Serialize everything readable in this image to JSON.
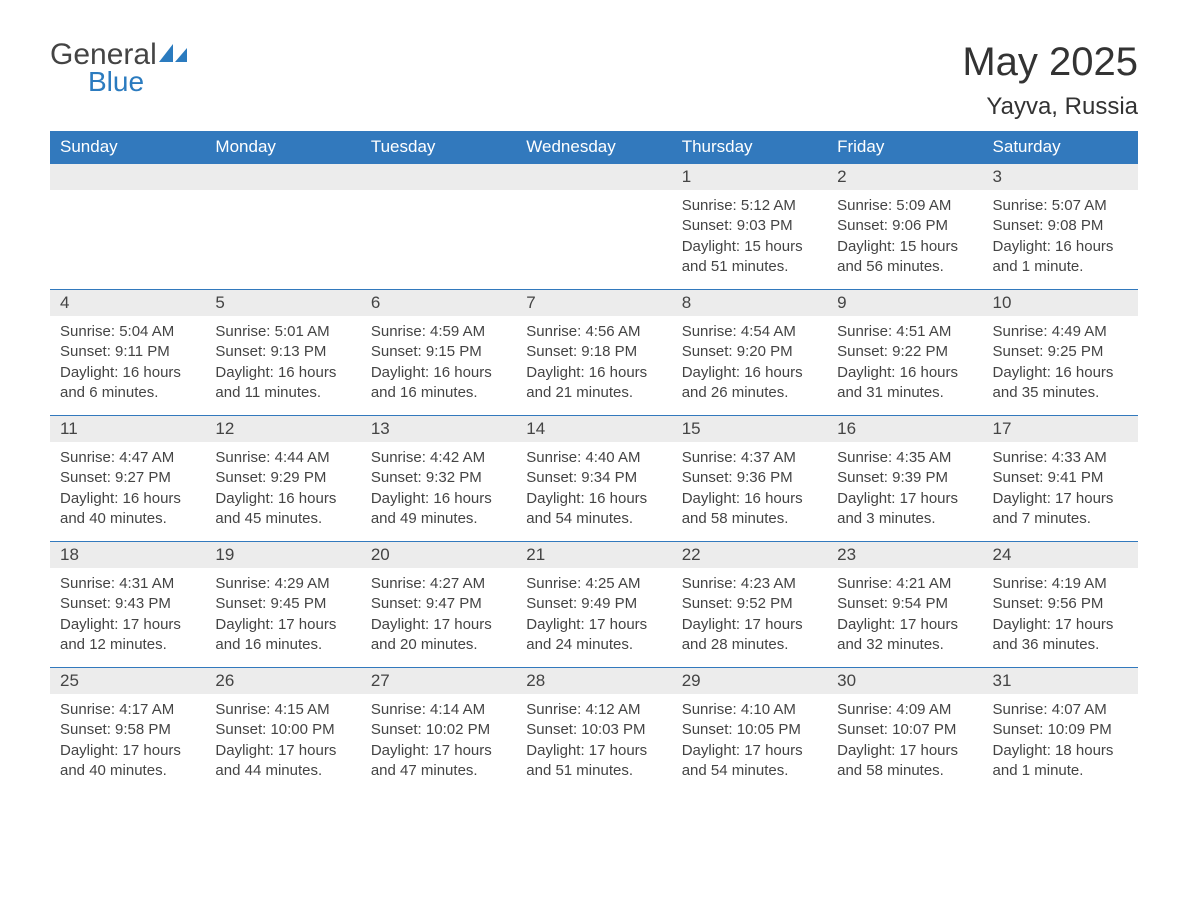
{
  "brand": {
    "general": "General",
    "blue": "Blue"
  },
  "title": "May 2025",
  "location": "Yayva, Russia",
  "day_headers": [
    "Sunday",
    "Monday",
    "Tuesday",
    "Wednesday",
    "Thursday",
    "Friday",
    "Saturday"
  ],
  "colors": {
    "header_bg": "#3279bd",
    "header_text": "#ffffff",
    "daynum_bg": "#ececec",
    "body_text": "#444444",
    "brand_blue": "#2b7bbf"
  },
  "weeks": [
    [
      null,
      null,
      null,
      null,
      {
        "n": "1",
        "sunrise": "Sunrise: 5:12 AM",
        "sunset": "Sunset: 9:03 PM",
        "daylight": "Daylight: 15 hours and 51 minutes."
      },
      {
        "n": "2",
        "sunrise": "Sunrise: 5:09 AM",
        "sunset": "Sunset: 9:06 PM",
        "daylight": "Daylight: 15 hours and 56 minutes."
      },
      {
        "n": "3",
        "sunrise": "Sunrise: 5:07 AM",
        "sunset": "Sunset: 9:08 PM",
        "daylight": "Daylight: 16 hours and 1 minute."
      }
    ],
    [
      {
        "n": "4",
        "sunrise": "Sunrise: 5:04 AM",
        "sunset": "Sunset: 9:11 PM",
        "daylight": "Daylight: 16 hours and 6 minutes."
      },
      {
        "n": "5",
        "sunrise": "Sunrise: 5:01 AM",
        "sunset": "Sunset: 9:13 PM",
        "daylight": "Daylight: 16 hours and 11 minutes."
      },
      {
        "n": "6",
        "sunrise": "Sunrise: 4:59 AM",
        "sunset": "Sunset: 9:15 PM",
        "daylight": "Daylight: 16 hours and 16 minutes."
      },
      {
        "n": "7",
        "sunrise": "Sunrise: 4:56 AM",
        "sunset": "Sunset: 9:18 PM",
        "daylight": "Daylight: 16 hours and 21 minutes."
      },
      {
        "n": "8",
        "sunrise": "Sunrise: 4:54 AM",
        "sunset": "Sunset: 9:20 PM",
        "daylight": "Daylight: 16 hours and 26 minutes."
      },
      {
        "n": "9",
        "sunrise": "Sunrise: 4:51 AM",
        "sunset": "Sunset: 9:22 PM",
        "daylight": "Daylight: 16 hours and 31 minutes."
      },
      {
        "n": "10",
        "sunrise": "Sunrise: 4:49 AM",
        "sunset": "Sunset: 9:25 PM",
        "daylight": "Daylight: 16 hours and 35 minutes."
      }
    ],
    [
      {
        "n": "11",
        "sunrise": "Sunrise: 4:47 AM",
        "sunset": "Sunset: 9:27 PM",
        "daylight": "Daylight: 16 hours and 40 minutes."
      },
      {
        "n": "12",
        "sunrise": "Sunrise: 4:44 AM",
        "sunset": "Sunset: 9:29 PM",
        "daylight": "Daylight: 16 hours and 45 minutes."
      },
      {
        "n": "13",
        "sunrise": "Sunrise: 4:42 AM",
        "sunset": "Sunset: 9:32 PM",
        "daylight": "Daylight: 16 hours and 49 minutes."
      },
      {
        "n": "14",
        "sunrise": "Sunrise: 4:40 AM",
        "sunset": "Sunset: 9:34 PM",
        "daylight": "Daylight: 16 hours and 54 minutes."
      },
      {
        "n": "15",
        "sunrise": "Sunrise: 4:37 AM",
        "sunset": "Sunset: 9:36 PM",
        "daylight": "Daylight: 16 hours and 58 minutes."
      },
      {
        "n": "16",
        "sunrise": "Sunrise: 4:35 AM",
        "sunset": "Sunset: 9:39 PM",
        "daylight": "Daylight: 17 hours and 3 minutes."
      },
      {
        "n": "17",
        "sunrise": "Sunrise: 4:33 AM",
        "sunset": "Sunset: 9:41 PM",
        "daylight": "Daylight: 17 hours and 7 minutes."
      }
    ],
    [
      {
        "n": "18",
        "sunrise": "Sunrise: 4:31 AM",
        "sunset": "Sunset: 9:43 PM",
        "daylight": "Daylight: 17 hours and 12 minutes."
      },
      {
        "n": "19",
        "sunrise": "Sunrise: 4:29 AM",
        "sunset": "Sunset: 9:45 PM",
        "daylight": "Daylight: 17 hours and 16 minutes."
      },
      {
        "n": "20",
        "sunrise": "Sunrise: 4:27 AM",
        "sunset": "Sunset: 9:47 PM",
        "daylight": "Daylight: 17 hours and 20 minutes."
      },
      {
        "n": "21",
        "sunrise": "Sunrise: 4:25 AM",
        "sunset": "Sunset: 9:49 PM",
        "daylight": "Daylight: 17 hours and 24 minutes."
      },
      {
        "n": "22",
        "sunrise": "Sunrise: 4:23 AM",
        "sunset": "Sunset: 9:52 PM",
        "daylight": "Daylight: 17 hours and 28 minutes."
      },
      {
        "n": "23",
        "sunrise": "Sunrise: 4:21 AM",
        "sunset": "Sunset: 9:54 PM",
        "daylight": "Daylight: 17 hours and 32 minutes."
      },
      {
        "n": "24",
        "sunrise": "Sunrise: 4:19 AM",
        "sunset": "Sunset: 9:56 PM",
        "daylight": "Daylight: 17 hours and 36 minutes."
      }
    ],
    [
      {
        "n": "25",
        "sunrise": "Sunrise: 4:17 AM",
        "sunset": "Sunset: 9:58 PM",
        "daylight": "Daylight: 17 hours and 40 minutes."
      },
      {
        "n": "26",
        "sunrise": "Sunrise: 4:15 AM",
        "sunset": "Sunset: 10:00 PM",
        "daylight": "Daylight: 17 hours and 44 minutes."
      },
      {
        "n": "27",
        "sunrise": "Sunrise: 4:14 AM",
        "sunset": "Sunset: 10:02 PM",
        "daylight": "Daylight: 17 hours and 47 minutes."
      },
      {
        "n": "28",
        "sunrise": "Sunrise: 4:12 AM",
        "sunset": "Sunset: 10:03 PM",
        "daylight": "Daylight: 17 hours and 51 minutes."
      },
      {
        "n": "29",
        "sunrise": "Sunrise: 4:10 AM",
        "sunset": "Sunset: 10:05 PM",
        "daylight": "Daylight: 17 hours and 54 minutes."
      },
      {
        "n": "30",
        "sunrise": "Sunrise: 4:09 AM",
        "sunset": "Sunset: 10:07 PM",
        "daylight": "Daylight: 17 hours and 58 minutes."
      },
      {
        "n": "31",
        "sunrise": "Sunrise: 4:07 AM",
        "sunset": "Sunset: 10:09 PM",
        "daylight": "Daylight: 18 hours and 1 minute."
      }
    ]
  ]
}
